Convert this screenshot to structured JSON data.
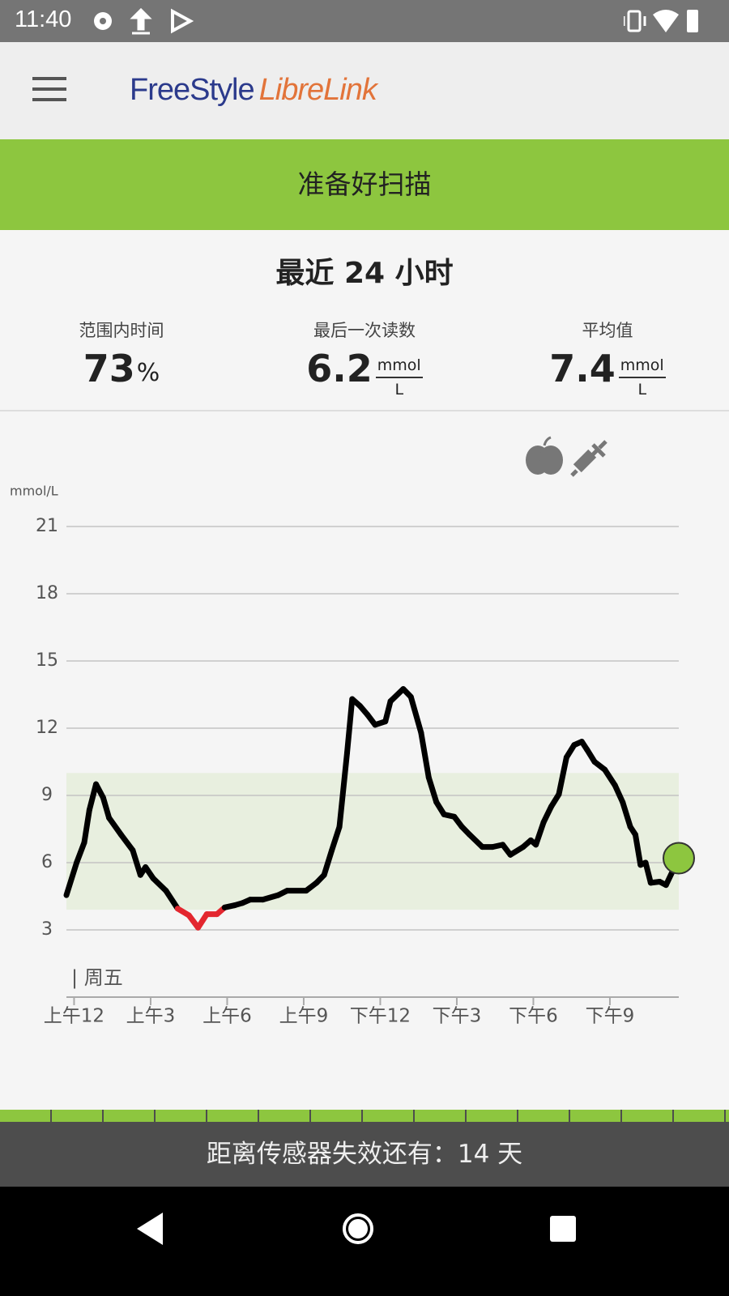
{
  "status_bar": {
    "time": "11:40"
  },
  "app_bar": {
    "logo_part1": "FreeStyle",
    "logo_part2": "LibreLink"
  },
  "banner": {
    "text": "准备好扫描"
  },
  "summary": {
    "title": "最近 24 小时",
    "stats": [
      {
        "label": "范围内时间",
        "value": 73,
        "unit": "%"
      },
      {
        "label": "最后一次读数",
        "value": 6.2,
        "unit_top": "mmol",
        "unit_bottom": "L"
      },
      {
        "label": "平均值",
        "value": 7.4,
        "unit_top": "mmol",
        "unit_bottom": "L"
      }
    ]
  },
  "chart_data": {
    "type": "line",
    "y_unit": "mmol/L",
    "day_label": "| 周五",
    "x": [
      -0.3,
      0.1,
      0.4,
      0.6,
      0.86,
      1.14,
      1.37,
      1.84,
      2.3,
      2.6,
      2.8,
      3.1,
      3.6,
      4.06,
      4.5,
      4.86,
      5.2,
      5.6,
      5.9,
      6.3,
      6.6,
      6.9,
      7.4,
      8.0,
      8.35,
      9.1,
      9.5,
      9.8,
      10.1,
      10.4,
      10.7,
      10.9,
      11.2,
      11.5,
      11.8,
      12.2,
      12.4,
      12.9,
      13.2,
      13.6,
      13.9,
      14.2,
      14.5,
      14.9,
      15.2,
      15.5,
      16.0,
      16.4,
      16.8,
      17.1,
      17.6,
      17.9,
      18.1,
      18.4,
      18.7,
      19.0,
      19.3,
      19.6,
      19.9,
      20.1,
      20.4,
      20.8,
      21.2,
      21.5,
      21.8,
      22.0,
      22.2,
      22.4,
      22.6,
      22.95,
      23.2,
      23.7
    ],
    "series": [
      {
        "color": "#000000",
        "low_color": "#e3262f",
        "values": [
          4.55,
          6.0,
          6.9,
          8.35,
          9.5,
          8.9,
          8.0,
          7.25,
          6.55,
          5.45,
          5.8,
          5.3,
          4.75,
          3.95,
          3.65,
          3.1,
          3.7,
          3.7,
          4.0,
          4.1,
          4.2,
          4.35,
          4.35,
          4.55,
          4.75,
          4.75,
          5.1,
          5.45,
          6.55,
          7.6,
          10.9,
          13.3,
          13.0,
          12.6,
          12.15,
          12.3,
          13.2,
          13.75,
          13.4,
          11.8,
          9.8,
          8.7,
          8.15,
          8.05,
          7.6,
          7.25,
          6.7,
          6.7,
          6.8,
          6.35,
          6.7,
          7.0,
          6.8,
          7.8,
          8.5,
          9.05,
          10.7,
          11.25,
          11.4,
          11.05,
          10.5,
          10.15,
          9.45,
          8.7,
          7.6,
          7.25,
          5.9,
          6.0,
          5.1,
          5.15,
          5.0,
          6.2
        ]
      }
    ],
    "target_range": [
      3.9,
      10
    ],
    "range_color": "#e8efdf",
    "last_point_color": "#8dc63f",
    "ylim": [
      0,
      21
    ],
    "yticks": [
      3,
      6,
      9,
      12,
      15,
      18,
      21
    ],
    "xlim": [
      -0.3,
      23.7
    ],
    "xticks": [
      {
        "value": 0,
        "label": "上午12"
      },
      {
        "value": 3,
        "label": "上午3"
      },
      {
        "value": 6,
        "label": "上午6"
      },
      {
        "value": 9,
        "label": "上午9"
      },
      {
        "value": 12,
        "label": "下午12"
      },
      {
        "value": 15,
        "label": "下午3"
      },
      {
        "value": 18,
        "label": "下午6"
      },
      {
        "value": 21,
        "label": "下午9"
      }
    ],
    "grid": true
  },
  "footer": {
    "text": "距离传感器失效还有：14 天"
  }
}
